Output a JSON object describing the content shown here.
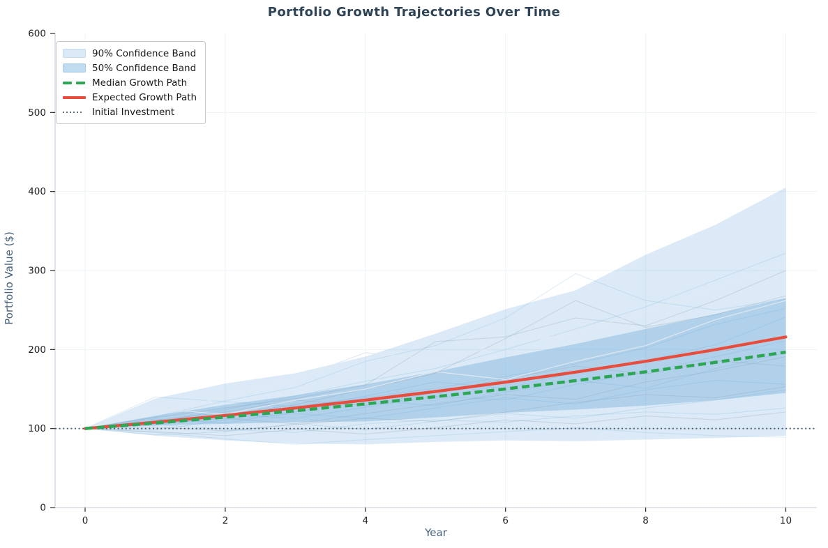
{
  "chart_data": {
    "type": "line",
    "title": "Portfolio Growth Trajectories Over Time",
    "xlabel": "Year",
    "ylabel": "Portfolio Value ($)",
    "xlim": [
      -0.43,
      10.45
    ],
    "ylim": [
      0,
      600
    ],
    "x_ticks": [
      0,
      2,
      4,
      6,
      8,
      10
    ],
    "y_ticks": [
      0,
      100,
      200,
      300,
      400,
      500,
      600
    ],
    "grid": true,
    "legend_position": "upper-left",
    "years": [
      0,
      1,
      2,
      3,
      4,
      5,
      6,
      7,
      8,
      9,
      10
    ],
    "bands": [
      {
        "name": "90% Confidence Band",
        "upper": [
          100,
          138,
          157,
          170,
          191,
          220,
          251,
          275,
          320,
          358,
          405
        ],
        "lower": [
          100,
          91,
          85,
          81,
          80,
          83,
          85,
          84,
          86,
          88,
          91
        ]
      },
      {
        "name": "50% Confidence Band",
        "upper": [
          100,
          116,
          130,
          142,
          156,
          172,
          190,
          207,
          226,
          245,
          265
        ],
        "lower": [
          100,
          104,
          106,
          108,
          109,
          114,
          120,
          124,
          129,
          136,
          145
        ]
      }
    ],
    "series": [
      {
        "name": "Median Growth Path",
        "style": "dashed",
        "color": "#2ca653",
        "values": [
          100,
          107,
          114.5,
          122.5,
          131.1,
          140.3,
          150.1,
          160.6,
          171.8,
          183.8,
          196.7
        ]
      },
      {
        "name": "Expected Growth Path",
        "style": "solid",
        "color": "#e74c3c",
        "values": [
          100,
          108,
          116.6,
          126,
          136,
          146.9,
          158.7,
          171.4,
          185.1,
          199.9,
          215.9
        ]
      }
    ],
    "initial_investment": 100,
    "sample_paths": [
      {
        "group": "blue",
        "values": [
          100,
          115,
          135,
          152,
          185,
          205,
          240,
          296,
          262,
          250,
          264
        ]
      },
      {
        "group": "blue",
        "values": [
          100,
          108,
          124,
          141,
          160,
          176,
          200,
          226,
          254,
          288,
          322
        ]
      },
      {
        "group": "blue",
        "values": [
          100,
          140,
          134,
          128,
          139,
          151,
          166,
          182,
          202,
          232,
          252
        ]
      },
      {
        "group": "blue",
        "values": [
          100,
          95,
          87,
          80,
          86,
          91,
          96,
          101,
          95,
          91,
          89
        ]
      },
      {
        "group": "blue",
        "values": [
          100,
          105,
          99,
          95,
          106,
          111,
          108,
          116,
          121,
          118,
          126
        ]
      },
      {
        "group": "blue",
        "values": [
          100,
          98,
          111,
          119,
          113,
          126,
          139,
          131,
          149,
          161,
          156
        ]
      },
      {
        "group": "blue",
        "values": [
          100,
          107,
          118,
          113,
          127,
          141,
          136,
          156,
          171,
          191,
          211
        ]
      },
      {
        "group": "blue",
        "values": [
          100,
          112,
          107,
          121,
          136,
          129,
          146,
          161,
          151,
          176,
          196
        ]
      },
      {
        "group": "blue",
        "values": [
          100,
          92,
          96,
          106,
          99,
          109,
          119,
          113,
          126,
          136,
          149
        ]
      },
      {
        "group": "blue",
        "values": [
          100,
          104,
          116,
          126,
          141,
          159,
          151,
          171,
          186,
          206,
          241
        ]
      },
      {
        "group": "gray",
        "values": [
          100,
          110,
          121,
          136,
          129,
          146,
          163,
          179,
          169,
          186,
          179
        ]
      },
      {
        "group": "gray",
        "values": [
          100,
          102,
          97,
          105,
          113,
          109,
          121,
          133,
          143,
          139,
          153
        ]
      },
      {
        "group": "gray",
        "values": [
          100,
          106,
          113,
          106,
          119,
          131,
          143,
          137,
          159,
          173,
          191
        ]
      },
      {
        "group": "gray",
        "values": [
          100,
          96,
          91,
          99,
          93,
          101,
          111,
          106,
          116,
          111,
          121
        ]
      },
      {
        "group": "gray",
        "values": [
          100,
          114,
          126,
          138,
          155,
          210,
          216,
          240,
          230,
          262,
          300
        ]
      },
      {
        "group": "gray",
        "values": [
          100,
          108,
          118,
          130,
          150,
          170,
          214,
          262,
          228,
          244,
          268
        ]
      },
      {
        "group": "light",
        "values": [
          100,
          120,
          140,
          163,
          196,
          188,
          205,
          222,
          248,
          278,
          308
        ]
      },
      {
        "group": "light",
        "values": [
          100,
          125,
          118,
          136,
          150,
          172,
          162,
          185,
          205,
          238,
          262
        ]
      }
    ],
    "legend": [
      {
        "label": "90% Confidence Band",
        "swatch": "patch",
        "color": "#dae9f5",
        "border": "#c3dcef"
      },
      {
        "label": "50% Confidence Band",
        "swatch": "patch",
        "color": "#c1dbf0",
        "border": "#a9cce6"
      },
      {
        "label": "Median Growth Path",
        "swatch": "dashed",
        "color": "#2ca653"
      },
      {
        "label": "Expected Growth Path",
        "swatch": "solid",
        "color": "#e74c3c"
      },
      {
        "label": "Initial Investment",
        "swatch": "dotted",
        "color": "#5d6d7a"
      }
    ],
    "colors": {
      "band_base": "#5a9fd4",
      "median": "#2ca653",
      "expected": "#e74c3c",
      "initial_line": "#4e5d6a",
      "title": "#2e4456",
      "axis_label": "#47617c",
      "tick_label": "#1f1f1f",
      "grid": "#edf3f8",
      "spine": "#ccd5dd"
    }
  }
}
